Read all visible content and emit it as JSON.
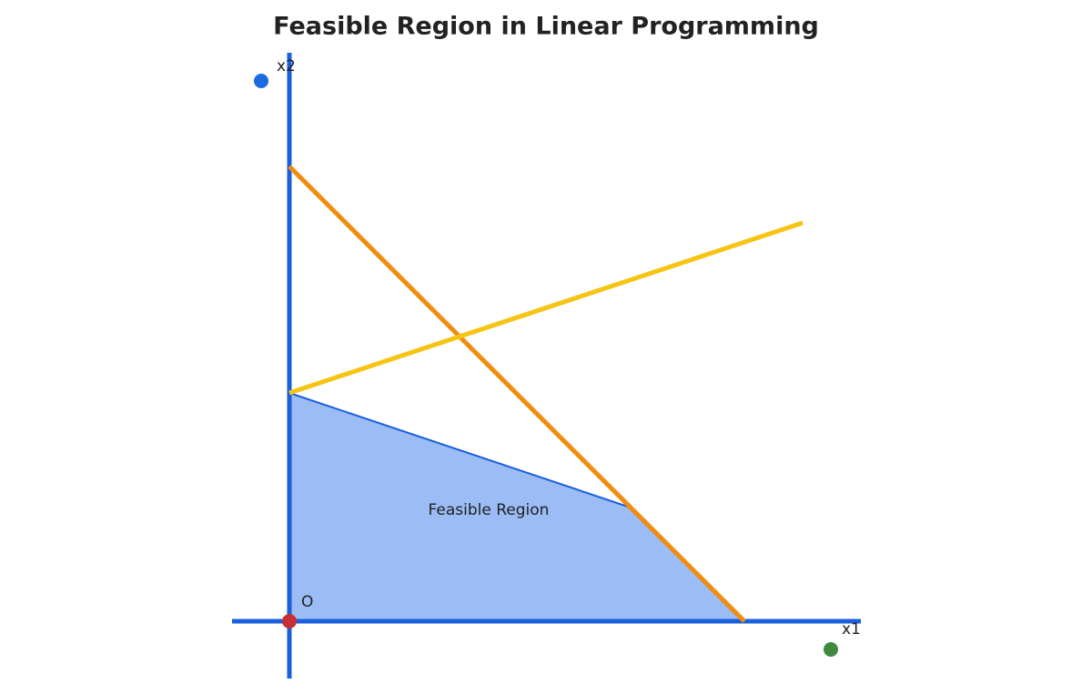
{
  "title": "Feasible Region in Linear Programming",
  "labels": {
    "y_axis": "x2",
    "x_axis": "x1",
    "origin": "O",
    "region": "Feasible Region"
  }
}
